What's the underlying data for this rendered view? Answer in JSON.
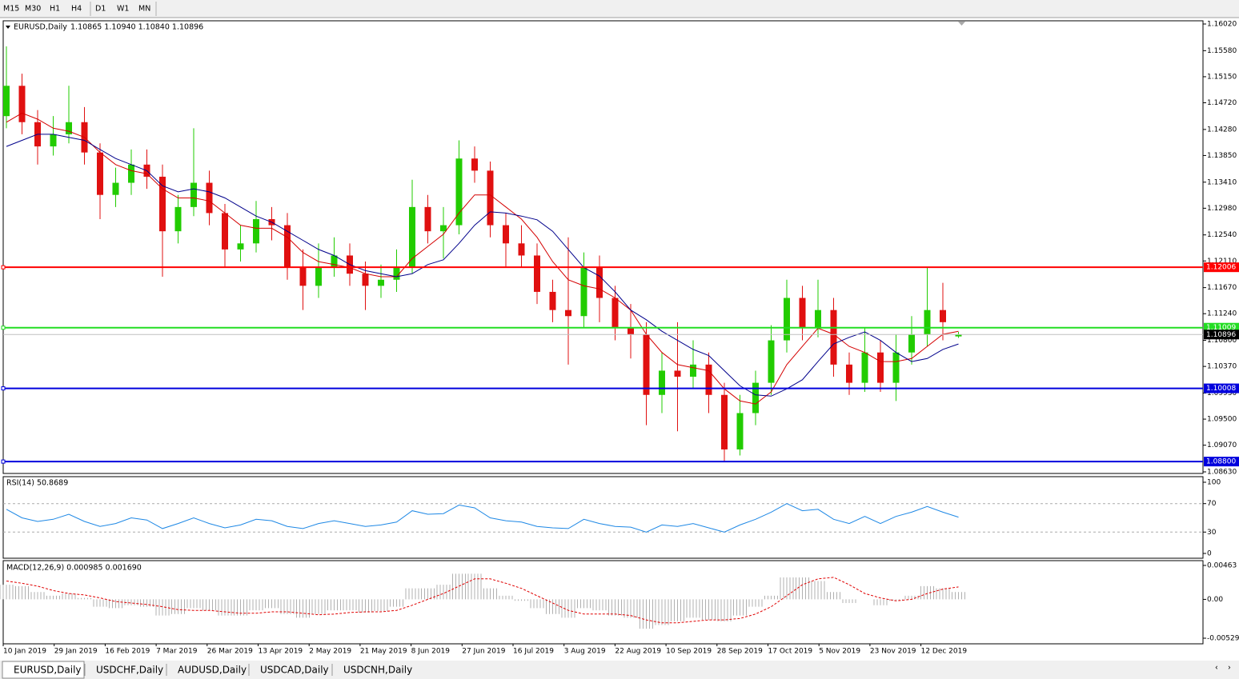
{
  "toolbar": [
    "M15",
    "M30",
    "H1",
    "H4",
    "D1",
    "W1",
    "MN"
  ],
  "tabs": [
    "EURUSD,Daily",
    "USDCHF,Daily",
    "AUDUSD,Daily",
    "USDCAD,Daily",
    "USDCNH,Daily"
  ],
  "chart_data": [
    {
      "type": "candlestick",
      "title": "EURUSD,Daily",
      "quote": "1.10865 1.10940 1.10840 1.10896",
      "up_color": "#22cc00",
      "down_color": "#e01010",
      "open": [
        1.145,
        1.15,
        1.144,
        1.14,
        1.142,
        1.144,
        1.139,
        1.132,
        1.134,
        1.137,
        1.135,
        1.126,
        1.13,
        1.134,
        1.129,
        1.123,
        1.124,
        1.128,
        1.127,
        1.12,
        1.117,
        1.12,
        1.122,
        1.119,
        1.117,
        1.118,
        1.12,
        1.13,
        1.126,
        1.127,
        1.138,
        1.136,
        1.127,
        1.124,
        1.122,
        1.116,
        1.113,
        1.112,
        1.12,
        1.115,
        1.11,
        1.109,
        1.099,
        1.103,
        1.102,
        1.104,
        1.099,
        1.09,
        1.096,
        1.101,
        1.108,
        1.115,
        1.11,
        1.113,
        1.104,
        1.101,
        1.106,
        1.101,
        1.106,
        1.109,
        1.113,
        1.10865
      ],
      "high": [
        1.1565,
        1.152,
        1.146,
        1.145,
        1.15,
        1.1465,
        1.1405,
        1.1365,
        1.1395,
        1.1395,
        1.137,
        1.132,
        1.143,
        1.136,
        1.1305,
        1.127,
        1.131,
        1.13,
        1.129,
        1.123,
        1.124,
        1.125,
        1.124,
        1.121,
        1.1205,
        1.123,
        1.1345,
        1.132,
        1.13,
        1.141,
        1.14,
        1.1375,
        1.129,
        1.127,
        1.124,
        1.118,
        1.125,
        1.1225,
        1.122,
        1.117,
        1.114,
        1.111,
        1.106,
        1.111,
        1.108,
        1.106,
        1.101,
        1.099,
        1.103,
        1.1105,
        1.118,
        1.117,
        1.118,
        1.115,
        1.106,
        1.11,
        1.108,
        1.109,
        1.112,
        1.12,
        1.1175,
        1.1094
      ],
      "low": [
        1.143,
        1.142,
        1.137,
        1.1385,
        1.1405,
        1.137,
        1.128,
        1.13,
        1.132,
        1.133,
        1.1185,
        1.124,
        1.1285,
        1.127,
        1.12,
        1.121,
        1.1225,
        1.1245,
        1.118,
        1.113,
        1.115,
        1.1185,
        1.117,
        1.113,
        1.115,
        1.116,
        1.119,
        1.124,
        1.1215,
        1.1255,
        1.134,
        1.125,
        1.12,
        1.12,
        1.114,
        1.111,
        1.104,
        1.11,
        1.111,
        1.108,
        1.105,
        1.094,
        1.096,
        1.093,
        1.1,
        1.096,
        1.088,
        1.089,
        1.094,
        1.099,
        1.106,
        1.108,
        1.1085,
        1.102,
        1.099,
        1.0995,
        1.0995,
        1.098,
        1.104,
        1.107,
        1.108,
        1.1084
      ],
      "close": [
        1.15,
        1.144,
        1.14,
        1.142,
        1.144,
        1.139,
        1.132,
        1.134,
        1.137,
        1.135,
        1.126,
        1.13,
        1.134,
        1.129,
        1.123,
        1.124,
        1.128,
        1.127,
        1.12,
        1.117,
        1.12,
        1.122,
        1.119,
        1.117,
        1.118,
        1.12,
        1.13,
        1.126,
        1.127,
        1.138,
        1.136,
        1.127,
        1.124,
        1.122,
        1.116,
        1.113,
        1.112,
        1.12,
        1.115,
        1.11,
        1.109,
        1.099,
        1.103,
        1.102,
        1.104,
        1.099,
        1.09,
        1.096,
        1.101,
        1.108,
        1.115,
        1.11,
        1.113,
        1.104,
        1.101,
        1.106,
        1.101,
        1.106,
        1.109,
        1.113,
        1.111,
        1.10896
      ],
      "series": [
        {
          "color": "#d40000",
          "values": [
            1.144,
            1.1455,
            1.1445,
            1.143,
            1.1425,
            1.1415,
            1.139,
            1.137,
            1.136,
            1.1355,
            1.133,
            1.1315,
            1.1315,
            1.131,
            1.129,
            1.127,
            1.1265,
            1.1265,
            1.125,
            1.1225,
            1.121,
            1.1205,
            1.12,
            1.119,
            1.1185,
            1.1185,
            1.1215,
            1.1235,
            1.1255,
            1.129,
            1.132,
            1.132,
            1.13,
            1.128,
            1.125,
            1.121,
            1.118,
            1.117,
            1.1165,
            1.115,
            1.113,
            1.109,
            1.106,
            1.104,
            1.1035,
            1.103,
            1.1,
            1.098,
            1.0975,
            1.0995,
            1.104,
            1.107,
            1.11,
            1.109,
            1.107,
            1.106,
            1.1045,
            1.1045,
            1.105,
            1.107,
            1.109,
            1.1095
          ]
        },
        {
          "color": "#00008b",
          "values": [
            1.14,
            1.141,
            1.142,
            1.142,
            1.1415,
            1.141,
            1.1395,
            1.138,
            1.137,
            1.136,
            1.1335,
            1.1325,
            1.133,
            1.1325,
            1.1315,
            1.13,
            1.1285,
            1.1275,
            1.126,
            1.1245,
            1.123,
            1.122,
            1.1205,
            1.1195,
            1.119,
            1.1185,
            1.119,
            1.1205,
            1.1213,
            1.124,
            1.127,
            1.1292,
            1.129,
            1.1285,
            1.1279,
            1.126,
            1.123,
            1.12,
            1.1186,
            1.116,
            1.113,
            1.1114,
            1.1095,
            1.108,
            1.1065,
            1.1055,
            1.103,
            1.1005,
            1.099,
            1.0988,
            1.1,
            1.1015,
            1.1045,
            1.1074,
            1.1085,
            1.1094,
            1.108,
            1.106,
            1.1045,
            1.105,
            1.1065,
            1.1074
          ]
        }
      ],
      "levels": [
        {
          "value": 1.12006,
          "color": "#ff0000"
        },
        {
          "value": 1.11009,
          "color": "#22dd22"
        },
        {
          "value": 1.10008,
          "color": "#0000dd"
        },
        {
          "value": 1.088,
          "label": "1.08800",
          "color": "#0000dd"
        }
      ],
      "last_price": 1.10896,
      "ylim": [
        1.0863,
        1.1602
      ],
      "yticks": [
        {
          "value": 1.1602,
          "label": "1.16020"
        },
        {
          "value": 1.1558,
          "label": "1.15580"
        },
        {
          "value": 1.1515,
          "label": "1.15150"
        },
        {
          "value": 1.1472,
          "label": "1.14720"
        },
        {
          "value": 1.1428,
          "label": "1.14280"
        },
        {
          "value": 1.1385,
          "label": "1.13850"
        },
        {
          "value": 1.1341,
          "label": "1.13410"
        },
        {
          "value": 1.1298,
          "label": "1.12980"
        },
        {
          "value": 1.1254,
          "label": "1.12540"
        },
        {
          "value": 1.1211,
          "label": "1.12110"
        },
        {
          "value": 1.1167,
          "label": "1.11670"
        },
        {
          "value": 1.1124,
          "label": "1.11240"
        },
        {
          "value": 1.108,
          "label": "1.10800"
        },
        {
          "value": 1.1037,
          "label": "1.10370"
        },
        {
          "value": 1.0993,
          "label": "1.09930"
        },
        {
          "value": 1.095,
          "label": "1.09500"
        },
        {
          "value": 1.0907,
          "label": "1.09070"
        },
        {
          "value": 1.0863,
          "label": "1.08630"
        }
      ],
      "x_labels": [
        "10 Jan 2019",
        "29 Jan 2019",
        "16 Feb 2019",
        "7 Mar 2019",
        "26 Mar 2019",
        "13 Apr 2019",
        "2 May 2019",
        "21 May 2019",
        "8 Jun 2019",
        "27 Jun 2019",
        "16 Jul 2019",
        "3 Aug 2019",
        "22 Aug 2019",
        "10 Sep 2019",
        "28 Sep 2019",
        "17 Oct 2019",
        "5 Nov 2019",
        "23 Nov 2019",
        "12 Dec 2019"
      ]
    },
    {
      "type": "line",
      "title": "RSI(14) 50.8689",
      "color": "#1e88e5",
      "values": [
        62,
        50,
        45,
        48,
        55,
        45,
        38,
        42,
        50,
        47,
        35,
        42,
        50,
        42,
        36,
        40,
        48,
        46,
        38,
        35,
        42,
        46,
        42,
        38,
        40,
        44,
        60,
        55,
        56,
        68,
        64,
        50,
        46,
        44,
        38,
        36,
        35,
        48,
        42,
        38,
        37,
        30,
        40,
        38,
        42,
        36,
        30,
        40,
        48,
        58,
        70,
        60,
        62,
        48,
        42,
        52,
        42,
        52,
        58,
        66,
        58,
        51
      ],
      "ylim": [
        0,
        100
      ],
      "yticks": [
        0,
        30,
        70,
        100
      ],
      "levels": [
        30,
        70
      ]
    },
    {
      "type": "macd",
      "title": "MACD(12,26,9) 0.000985 0.001690",
      "color": "#b0b0b0",
      "signal_color": "#e00000",
      "values": [
        0.002,
        0.0018,
        0.001,
        0.0005,
        0.0008,
        0.0002,
        -0.001,
        -0.0012,
        -0.0008,
        -0.001,
        -0.0022,
        -0.002,
        -0.0012,
        -0.0015,
        -0.0022,
        -0.0022,
        -0.0015,
        -0.0012,
        -0.002,
        -0.0025,
        -0.002,
        -0.0015,
        -0.0015,
        -0.0018,
        -0.0016,
        -0.001,
        0.0015,
        0.0015,
        0.002,
        0.0035,
        0.0035,
        0.0015,
        0.0005,
        -0.0002,
        -0.0012,
        -0.002,
        -0.0025,
        -0.0012,
        -0.0015,
        -0.0022,
        -0.0025,
        -0.004,
        -0.0035,
        -0.003,
        -0.0025,
        -0.0028,
        -0.003,
        -0.0022,
        -0.001,
        0.0005,
        0.003,
        0.003,
        0.0025,
        0.001,
        -0.0005,
        0.0,
        -0.0008,
        -0.0002,
        0.0005,
        0.0018,
        0.0015,
        0.001
      ],
      "signal": [
        0.0025,
        0.0022,
        0.0018,
        0.0012,
        0.0008,
        0.0006,
        0.0002,
        -0.0003,
        -0.0005,
        -0.0007,
        -0.001,
        -0.0014,
        -0.0015,
        -0.0015,
        -0.0017,
        -0.0019,
        -0.0019,
        -0.0017,
        -0.0017,
        -0.0019,
        -0.0021,
        -0.002,
        -0.0018,
        -0.0017,
        -0.0017,
        -0.0015,
        -0.0008,
        0.0,
        0.0008,
        0.0018,
        0.0028,
        0.0028,
        0.0022,
        0.0015,
        0.0005,
        -0.0005,
        -0.0015,
        -0.002,
        -0.002,
        -0.002,
        -0.0022,
        -0.0028,
        -0.0032,
        -0.0032,
        -0.003,
        -0.0028,
        -0.0028,
        -0.0026,
        -0.002,
        -0.001,
        0.0005,
        0.002,
        0.0028,
        0.003,
        0.002,
        0.0008,
        0.0002,
        -0.0002,
        0.0,
        0.0008,
        0.0014,
        0.0017
      ],
      "ylim": [
        -0.005299,
        0.00463
      ],
      "yticks": [
        0.00463,
        {
          "value": 0,
          "label": "0.00"
        },
        -0.005299
      ]
    }
  ]
}
